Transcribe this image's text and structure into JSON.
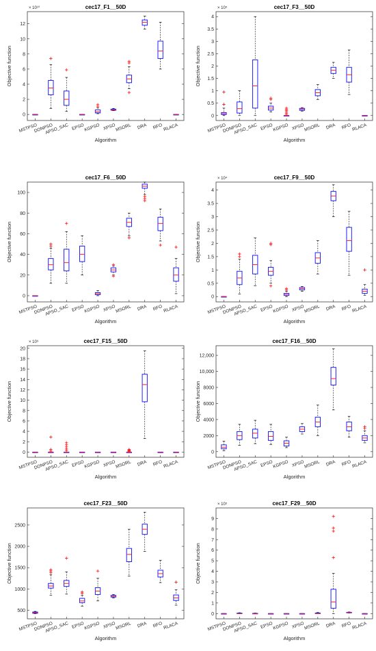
{
  "colors": {
    "box": "#2020ff",
    "median": "#ff2020",
    "outlier": "#ff2020",
    "whisker": "#000000",
    "axis": "#262626",
    "text": "#262626"
  },
  "chart_data": [
    {
      "type": "boxplot",
      "title": "cec17_F1__50D",
      "xlabel": "Algorithm",
      "ylabel": "Objective function",
      "multiplier": "× 10¹⁰",
      "categories": [
        "MSTPSO",
        "DONPSO",
        "APSO_SAC",
        "EPSO",
        "KGPSO",
        "XPSO",
        "MSORL",
        "DRA",
        "RFO",
        "RLACA"
      ],
      "ylim": [
        -0.8,
        13.6
      ],
      "yticks": [
        0,
        2,
        4,
        6,
        8,
        10,
        12
      ],
      "yticklabels": [
        "0",
        "2",
        "4",
        "6",
        "8",
        "10",
        "12"
      ],
      "boxes": [
        {
          "min": 0,
          "q1": 0,
          "median": 0,
          "q3": 0,
          "max": 0,
          "outliers": []
        },
        {
          "min": 0.8,
          "q1": 2.6,
          "median": 3.5,
          "q3": 4.5,
          "max": 6.6,
          "outliers": [
            7.4
          ]
        },
        {
          "min": 0.4,
          "q1": 1.2,
          "median": 2.0,
          "q3": 3.1,
          "max": 4.9,
          "outliers": [
            5.9
          ]
        },
        {
          "min": 0,
          "q1": 0,
          "median": 0,
          "q3": 0,
          "max": 0,
          "outliers": []
        },
        {
          "min": 0.1,
          "q1": 0.2,
          "median": 0.35,
          "q3": 0.6,
          "max": 0.9,
          "outliers": [
            1.1,
            1.3
          ]
        },
        {
          "min": 0.5,
          "q1": 0.55,
          "median": 0.6,
          "q3": 0.7,
          "max": 0.8,
          "outliers": []
        },
        {
          "min": 3.4,
          "q1": 4.2,
          "median": 4.7,
          "q3": 5.2,
          "max": 6.3,
          "outliers": [
            2.9,
            6.8,
            7.0
          ]
        },
        {
          "min": 11.3,
          "q1": 11.8,
          "median": 12.2,
          "q3": 12.5,
          "max": 13.0,
          "outliers": []
        },
        {
          "min": 6.0,
          "q1": 7.4,
          "median": 8.4,
          "q3": 9.7,
          "max": 12.2,
          "outliers": []
        },
        {
          "min": 0,
          "q1": 0,
          "median": 0,
          "q3": 0,
          "max": 0,
          "outliers": []
        }
      ]
    },
    {
      "type": "boxplot",
      "title": "cec17_F3__50D",
      "xlabel": "Algorithm",
      "ylabel": "Objective function",
      "multiplier": "× 10⁵",
      "categories": [
        "MSTPSO",
        "DONPSO",
        "APSO_SAC",
        "EPSO",
        "KGPSO",
        "XPSO",
        "MSORL",
        "DRA",
        "RFO",
        "RLACA"
      ],
      "ylim": [
        -0.2,
        4.2
      ],
      "yticks": [
        0,
        0.5,
        1,
        1.5,
        2,
        2.5,
        3,
        3.5,
        4
      ],
      "yticklabels": [
        "0",
        "0.5",
        "1",
        "1.5",
        "2",
        "2.5",
        "3",
        "3.5",
        "4"
      ],
      "boxes": [
        {
          "min": 0,
          "q1": 0.04,
          "median": 0.08,
          "q3": 0.12,
          "max": 0.3,
          "outliers": [
            0.45,
            0.95
          ]
        },
        {
          "min": 0,
          "q1": 0.1,
          "median": 0.28,
          "q3": 0.55,
          "max": 1.0,
          "outliers": []
        },
        {
          "min": 0,
          "q1": 0.3,
          "median": 1.2,
          "q3": 2.25,
          "max": 4.0,
          "outliers": []
        },
        {
          "min": 0.15,
          "q1": 0.22,
          "median": 0.3,
          "q3": 0.38,
          "max": 0.5,
          "outliers": [
            0.65,
            0.7
          ]
        },
        {
          "min": 0,
          "q1": 0,
          "median": 0,
          "q3": 0,
          "max": 0,
          "outliers": [
            0.05,
            0.1,
            0.15,
            0.2,
            0.25,
            0.3
          ]
        },
        {
          "min": 0.18,
          "q1": 0.21,
          "median": 0.25,
          "q3": 0.29,
          "max": 0.32,
          "outliers": []
        },
        {
          "min": 0.65,
          "q1": 0.8,
          "median": 0.92,
          "q3": 1.05,
          "max": 1.25,
          "outliers": []
        },
        {
          "min": 1.5,
          "q1": 1.7,
          "median": 1.83,
          "q3": 1.95,
          "max": 2.15,
          "outliers": []
        },
        {
          "min": 0.85,
          "q1": 1.35,
          "median": 1.65,
          "q3": 1.95,
          "max": 2.65,
          "outliers": []
        },
        {
          "min": 0,
          "q1": 0,
          "median": 0,
          "q3": 0,
          "max": 0,
          "outliers": []
        }
      ]
    },
    {
      "type": "boxplot",
      "title": "cec17_F6__50D",
      "xlabel": "Algorithm",
      "ylabel": "Objective function",
      "multiplier": "",
      "categories": [
        "MSTPSO",
        "DONPSO",
        "APSO_SAC",
        "EPSO",
        "KGPSO",
        "XPSO",
        "MSORL",
        "DRA",
        "RFO",
        "RLACA"
      ],
      "ylim": [
        -6,
        110
      ],
      "yticks": [
        0,
        20,
        40,
        60,
        80,
        100
      ],
      "yticklabels": [
        "0",
        "20",
        "40",
        "60",
        "80",
        "100"
      ],
      "boxes": [
        {
          "min": 0,
          "q1": 0,
          "median": 0,
          "q3": 0,
          "max": 0,
          "outliers": []
        },
        {
          "min": 12,
          "q1": 25,
          "median": 30,
          "q3": 36,
          "max": 46,
          "outliers": [
            48,
            50
          ]
        },
        {
          "min": 12,
          "q1": 24,
          "median": 32,
          "q3": 45,
          "max": 62,
          "outliers": [
            70
          ]
        },
        {
          "min": 20,
          "q1": 33,
          "median": 40,
          "q3": 48,
          "max": 58,
          "outliers": []
        },
        {
          "min": 0,
          "q1": 1,
          "median": 2,
          "q3": 3,
          "max": 5,
          "outliers": []
        },
        {
          "min": 20,
          "q1": 23,
          "median": 25,
          "q3": 27,
          "max": 29,
          "outliers": [
            19,
            30
          ]
        },
        {
          "min": 58,
          "q1": 67,
          "median": 71,
          "q3": 75,
          "max": 80,
          "outliers": [
            56
          ]
        },
        {
          "min": 98,
          "q1": 104,
          "median": 106,
          "q3": 108,
          "max": 110,
          "outliers": [
            92,
            94,
            96
          ]
        },
        {
          "min": 53,
          "q1": 63,
          "median": 70,
          "q3": 76,
          "max": 84,
          "outliers": [
            49
          ]
        },
        {
          "min": 2,
          "q1": 14,
          "median": 20,
          "q3": 27,
          "max": 36,
          "outliers": [
            47
          ]
        }
      ]
    },
    {
      "type": "boxplot",
      "title": "cec17_F9__50D",
      "xlabel": "Algorithm",
      "ylabel": "Objective function",
      "multiplier": "× 10⁴",
      "categories": [
        "MSTPSO",
        "DONPSO",
        "APSO_SAC",
        "EPSO",
        "KGPSO",
        "XPSO",
        "MSORL",
        "DRA",
        "RFO",
        "RLACA"
      ],
      "ylim": [
        -0.2,
        4.3
      ],
      "yticks": [
        0,
        0.5,
        1,
        1.5,
        2,
        2.5,
        3,
        3.5,
        4
      ],
      "yticklabels": [
        "0",
        "0.5",
        "1",
        "1.5",
        "2",
        "2.5",
        "3",
        "3.5",
        "4"
      ],
      "boxes": [
        {
          "min": 0,
          "q1": 0,
          "median": 0,
          "q3": 0,
          "max": 0,
          "outliers": []
        },
        {
          "min": 0.1,
          "q1": 0.45,
          "median": 0.7,
          "q3": 0.95,
          "max": 1.4,
          "outliers": [
            1.5,
            1.6
          ]
        },
        {
          "min": 0.4,
          "q1": 0.85,
          "median": 1.2,
          "q3": 1.55,
          "max": 2.2,
          "outliers": []
        },
        {
          "min": 0.5,
          "q1": 0.8,
          "median": 0.95,
          "q3": 1.1,
          "max": 1.35,
          "outliers": [
            0.4,
            1.95,
            2.0
          ]
        },
        {
          "min": 0,
          "q1": 0.04,
          "median": 0.08,
          "q3": 0.12,
          "max": 0.2,
          "outliers": [
            0.25,
            0.3
          ]
        },
        {
          "min": 0.2,
          "q1": 0.25,
          "median": 0.3,
          "q3": 0.34,
          "max": 0.38,
          "outliers": []
        },
        {
          "min": 0.85,
          "q1": 1.25,
          "median": 1.45,
          "q3": 1.65,
          "max": 2.1,
          "outliers": []
        },
        {
          "min": 3.0,
          "q1": 3.6,
          "median": 3.78,
          "q3": 3.95,
          "max": 4.2,
          "outliers": []
        },
        {
          "min": 0.8,
          "q1": 1.7,
          "median": 2.1,
          "q3": 2.6,
          "max": 3.2,
          "outliers": []
        },
        {
          "min": 0.05,
          "q1": 0.12,
          "median": 0.2,
          "q3": 0.28,
          "max": 0.45,
          "outliers": [
            1.0
          ]
        }
      ]
    },
    {
      "type": "boxplot",
      "title": "cec17_F15__50D",
      "xlabel": "Algorithm",
      "ylabel": "Objective function",
      "multiplier": "× 10⁹",
      "categories": [
        "MSTPSO",
        "DONPSO",
        "APSO_SAC",
        "EPSO",
        "KGPSO",
        "XPSO",
        "MSORL",
        "DRA",
        "RFO",
        "RLACA"
      ],
      "ylim": [
        -1,
        20.5
      ],
      "yticks": [
        0,
        2,
        4,
        6,
        8,
        10,
        12,
        14,
        16,
        18,
        20
      ],
      "yticklabels": [
        "0",
        "2",
        "4",
        "6",
        "8",
        "10",
        "12",
        "14",
        "16",
        "18",
        "20"
      ],
      "boxes": [
        {
          "min": 0,
          "q1": 0,
          "median": 0,
          "q3": 0,
          "max": 0,
          "outliers": []
        },
        {
          "min": 0,
          "q1": 0,
          "median": 0,
          "q3": 0,
          "max": 0,
          "outliers": [
            0.2,
            0.5,
            2.9
          ]
        },
        {
          "min": 0,
          "q1": 0,
          "median": 0,
          "q3": 0,
          "max": 0,
          "outliers": [
            0.3,
            0.6,
            1.0,
            1.4,
            1.8
          ]
        },
        {
          "min": 0,
          "q1": 0,
          "median": 0,
          "q3": 0,
          "max": 0,
          "outliers": []
        },
        {
          "min": 0,
          "q1": 0,
          "median": 0,
          "q3": 0,
          "max": 0,
          "outliers": []
        },
        {
          "min": 0,
          "q1": 0,
          "median": 0,
          "q3": 0,
          "max": 0,
          "outliers": []
        },
        {
          "min": 0,
          "q1": 0,
          "median": 0,
          "q3": 0,
          "max": 0,
          "outliers": [
            0.1,
            0.2,
            0.3,
            0.4,
            0.5
          ]
        },
        {
          "min": 2.6,
          "q1": 9.7,
          "median": 13.0,
          "q3": 15.0,
          "max": 19.5,
          "outliers": []
        },
        {
          "min": 0,
          "q1": 0,
          "median": 0,
          "q3": 0,
          "max": 0,
          "outliers": []
        },
        {
          "min": 0,
          "q1": 0,
          "median": 0,
          "q3": 0,
          "max": 0,
          "outliers": []
        }
      ]
    },
    {
      "type": "boxplot",
      "title": "cec17_F16__50D",
      "xlabel": "Algorithm",
      "ylabel": "Objective function",
      "multiplier": "",
      "categories": [
        "MSTPSO",
        "DONPSO",
        "APSO_SAC",
        "EPSO",
        "KGPSO",
        "XPSO",
        "MSORL",
        "DRA",
        "RFO",
        "RLACA"
      ],
      "ylim": [
        -700,
        13200
      ],
      "yticks": [
        0,
        2000,
        4000,
        6000,
        8000,
        10000,
        12000
      ],
      "yticklabels": [
        "0",
        "2000",
        "4000",
        "6000",
        "8000",
        "10,000",
        "12,000"
      ],
      "boxes": [
        {
          "min": 100,
          "q1": 350,
          "median": 550,
          "q3": 850,
          "max": 1300,
          "outliers": []
        },
        {
          "min": 800,
          "q1": 1500,
          "median": 2000,
          "q3": 2500,
          "max": 3400,
          "outliers": []
        },
        {
          "min": 1000,
          "q1": 1700,
          "median": 2300,
          "q3": 2800,
          "max": 3900,
          "outliers": []
        },
        {
          "min": 900,
          "q1": 1400,
          "median": 1900,
          "q3": 2500,
          "max": 3400,
          "outliers": []
        },
        {
          "min": 500,
          "q1": 700,
          "median": 1050,
          "q3": 1350,
          "max": 1800,
          "outliers": []
        },
        {
          "min": 2200,
          "q1": 2500,
          "median": 2800,
          "q3": 3100,
          "max": 3500,
          "outliers": []
        },
        {
          "min": 2000,
          "q1": 3100,
          "median": 3700,
          "q3": 4300,
          "max": 5800,
          "outliers": []
        },
        {
          "min": 5200,
          "q1": 8300,
          "median": 9100,
          "q3": 10500,
          "max": 12800,
          "outliers": []
        },
        {
          "min": 1800,
          "q1": 2600,
          "median": 3100,
          "q3": 3700,
          "max": 4400,
          "outliers": []
        },
        {
          "min": 1100,
          "q1": 1400,
          "median": 1700,
          "q3": 2000,
          "max": 2600,
          "outliers": [
            2900,
            3100
          ]
        }
      ]
    },
    {
      "type": "boxplot",
      "title": "cec17_F23__50D",
      "xlabel": "Algorithm",
      "ylabel": "Objective function",
      "multiplier": "",
      "categories": [
        "MSTPSO",
        "DONPSO",
        "APSO_SAC",
        "EPSO",
        "KGPSO",
        "XPSO",
        "MSORL",
        "DRA",
        "RFO",
        "RLACA"
      ],
      "ylim": [
        300,
        2900
      ],
      "yticks": [
        500,
        1000,
        1500,
        2000,
        2500
      ],
      "yticklabels": [
        "500",
        "1000",
        "1500",
        "2000",
        "2500"
      ],
      "boxes": [
        {
          "min": 420,
          "q1": 430,
          "median": 445,
          "q3": 460,
          "max": 475,
          "outliers": []
        },
        {
          "min": 850,
          "q1": 1020,
          "median": 1070,
          "q3": 1130,
          "max": 1330,
          "outliers": [
            1380,
            1420,
            1450
          ]
        },
        {
          "min": 880,
          "q1": 1060,
          "median": 1130,
          "q3": 1200,
          "max": 1400,
          "outliers": [
            1720
          ]
        },
        {
          "min": 600,
          "q1": 680,
          "median": 720,
          "q3": 780,
          "max": 850,
          "outliers": [
            900,
            930
          ]
        },
        {
          "min": 720,
          "q1": 870,
          "median": 950,
          "q3": 1030,
          "max": 1250,
          "outliers": [
            1420
          ]
        },
        {
          "min": 790,
          "q1": 810,
          "median": 830,
          "q3": 850,
          "max": 870,
          "outliers": []
        },
        {
          "min": 1300,
          "q1": 1640,
          "median": 1810,
          "q3": 1950,
          "max": 2400,
          "outliers": []
        },
        {
          "min": 1880,
          "q1": 2280,
          "median": 2400,
          "q3": 2520,
          "max": 2800,
          "outliers": []
        },
        {
          "min": 1150,
          "q1": 1280,
          "median": 1360,
          "q3": 1440,
          "max": 1670,
          "outliers": []
        },
        {
          "min": 620,
          "q1": 730,
          "median": 790,
          "q3": 860,
          "max": 980,
          "outliers": [
            1160
          ]
        }
      ]
    },
    {
      "type": "boxplot",
      "title": "cec17_F29__50D",
      "xlabel": "Algorithm",
      "ylabel": "Objective function",
      "multiplier": "× 10⁵",
      "categories": [
        "MSTPSO",
        "DONPSO",
        "APSO_SAC",
        "EPSO",
        "KGPSO",
        "XPSO",
        "MSORL",
        "DRA",
        "RFO",
        "RLACA"
      ],
      "ylim": [
        -0.5,
        10
      ],
      "yticks": [
        0,
        1,
        2,
        3,
        4,
        5,
        6,
        7,
        8,
        9
      ],
      "yticklabels": [
        "0",
        "1",
        "2",
        "3",
        "4",
        "5",
        "6",
        "7",
        "8",
        "9"
      ],
      "boxes": [
        {
          "min": 0,
          "q1": 0,
          "median": 0,
          "q3": 0,
          "max": 0,
          "outliers": []
        },
        {
          "min": 0,
          "q1": 0,
          "median": 0,
          "q3": 0.04,
          "max": 0.08,
          "outliers": []
        },
        {
          "min": 0,
          "q1": 0,
          "median": 0,
          "q3": 0.02,
          "max": 0.05,
          "outliers": []
        },
        {
          "min": 0,
          "q1": 0,
          "median": 0,
          "q3": 0,
          "max": 0,
          "outliers": []
        },
        {
          "min": 0,
          "q1": 0,
          "median": 0,
          "q3": 0,
          "max": 0,
          "outliers": []
        },
        {
          "min": 0,
          "q1": 0,
          "median": 0,
          "q3": 0,
          "max": 0,
          "outliers": []
        },
        {
          "min": 0,
          "q1": 0,
          "median": 0,
          "q3": 0.05,
          "max": 0.1,
          "outliers": []
        },
        {
          "min": 0,
          "q1": 0.5,
          "median": 1.1,
          "q3": 2.3,
          "max": 3.8,
          "outliers": [
            5.3,
            7.8,
            8.1,
            9.2
          ]
        },
        {
          "min": 0.05,
          "q1": 0.08,
          "median": 0.1,
          "q3": 0.12,
          "max": 0.15,
          "outliers": []
        },
        {
          "min": 0,
          "q1": 0,
          "median": 0,
          "q3": 0,
          "max": 0,
          "outliers": []
        }
      ]
    }
  ]
}
